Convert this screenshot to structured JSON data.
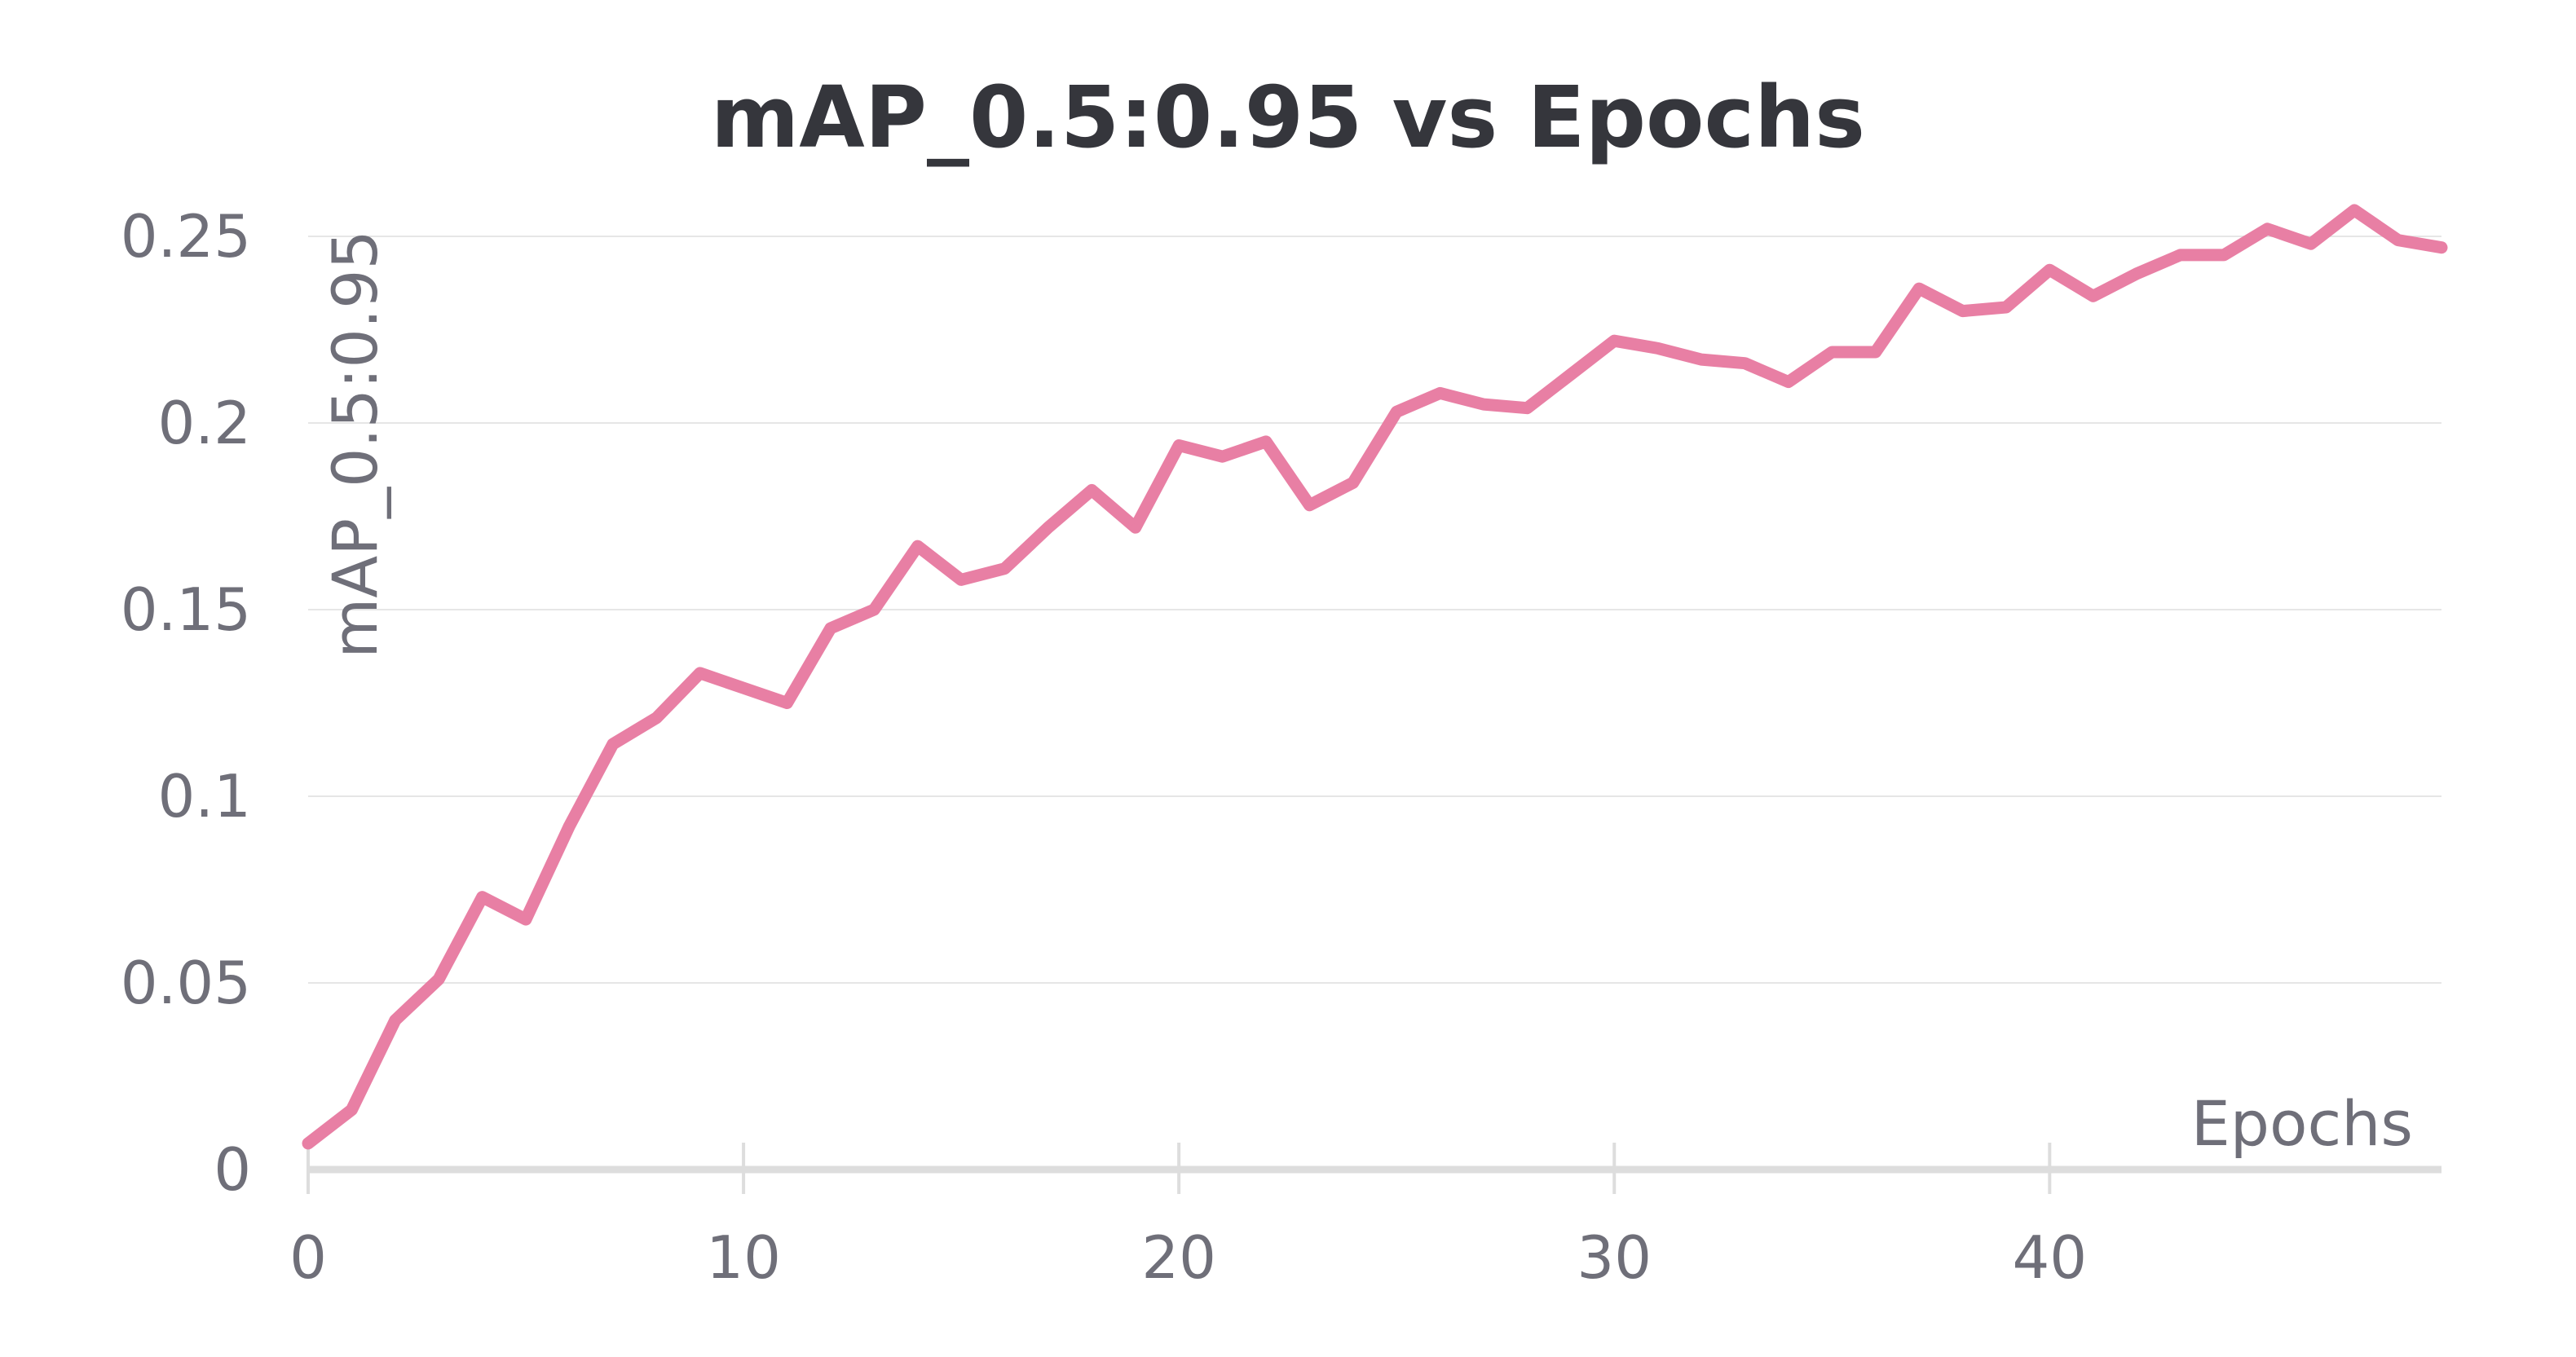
{
  "colors": {
    "line": "#e87fa4",
    "title": "#35363c",
    "ticks": "#6f6f79",
    "grid": "#e6e6e6",
    "axis": "#dddddd"
  },
  "chart_data": {
    "type": "line",
    "title": "mAP_0.5:0.95 vs Epochs",
    "xlabel": "Epochs",
    "ylabel": "mAP_0.5:0.95",
    "xlim": [
      0,
      49
    ],
    "ylim": [
      0,
      0.25
    ],
    "xticks": [
      0,
      10,
      20,
      30,
      40
    ],
    "xtick_labels": [
      "0",
      "10",
      "20",
      "30",
      "40"
    ],
    "yticks": [
      0,
      0.05,
      0.1,
      0.15,
      0.2,
      0.25
    ],
    "ytick_labels": [
      "0",
      "0.05",
      "0.1",
      "0.15",
      "0.2",
      "0.25"
    ],
    "grid": true,
    "legend": "none",
    "series": [
      {
        "x": [
          0,
          1,
          2,
          3,
          4,
          5,
          6,
          7,
          8,
          9,
          10,
          11,
          12,
          13,
          14,
          15,
          16,
          17,
          18,
          19,
          20,
          21,
          22,
          23,
          24,
          25,
          26,
          27,
          28,
          29,
          30,
          31,
          32,
          33,
          34,
          35,
          36,
          37,
          38,
          39,
          40,
          41,
          42,
          43,
          44,
          45,
          46,
          47,
          48,
          49
        ],
        "values": [
          0.007,
          0.016,
          0.04,
          0.051,
          0.073,
          0.067,
          0.092,
          0.114,
          0.121,
          0.133,
          0.129,
          0.125,
          0.145,
          0.15,
          0.167,
          0.158,
          0.161,
          0.172,
          0.182,
          0.172,
          0.194,
          0.191,
          0.195,
          0.178,
          0.184,
          0.203,
          0.208,
          0.205,
          0.204,
          0.213,
          0.222,
          0.22,
          0.217,
          0.216,
          0.211,
          0.219,
          0.219,
          0.236,
          0.23,
          0.231,
          0.241,
          0.234,
          0.24,
          0.245,
          0.245,
          0.252,
          0.248,
          0.257,
          0.249,
          0.247
        ]
      }
    ]
  }
}
